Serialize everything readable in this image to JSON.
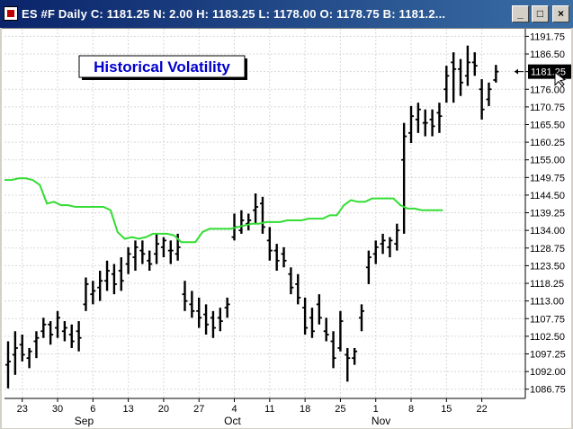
{
  "window": {
    "title": "ES #F Daily C:  1181.25 N:    2.00 H:  1183.25 L:  1178.00 O:  1178.75 B:  1181.2..."
  },
  "legend": {
    "label": "Historical Volatility"
  },
  "chart_data": {
    "type": "bar",
    "title": "",
    "ylim": [
      1084,
      1194
    ],
    "y_ticks": [
      1191.75,
      1186.5,
      1181.25,
      1176.0,
      1170.75,
      1165.5,
      1160.25,
      1155.0,
      1149.75,
      1144.5,
      1139.25,
      1134.0,
      1128.75,
      1123.5,
      1118.25,
      1113.0,
      1107.75,
      1102.5,
      1097.25,
      1092.0,
      1086.75
    ],
    "last_price_label": "1181.25",
    "x_tick_labels": [
      "23",
      "30",
      "6",
      "13",
      "20",
      "27",
      "4",
      "11",
      "18",
      "25",
      "1",
      "8",
      "15",
      "22"
    ],
    "x_tick_index": [
      2,
      7,
      12,
      17,
      22,
      27,
      32,
      37,
      42,
      47,
      52,
      57,
      62,
      67
    ],
    "month_labels": [
      {
        "label": "Sep",
        "index": 11
      },
      {
        "label": "Oct",
        "index": 32
      },
      {
        "label": "Nov",
        "index": 53
      }
    ],
    "series": [
      {
        "name": "Price",
        "style": "ohlc",
        "color": "#000000",
        "ohlc": [
          [
            1094,
            1101,
            1087,
            1095
          ],
          [
            1097,
            1104,
            1091,
            1099
          ],
          [
            1100,
            1103,
            1095,
            1097
          ],
          [
            1096,
            1099,
            1093,
            1098
          ],
          [
            1101,
            1104,
            1096,
            1102
          ],
          [
            1104,
            1108,
            1102,
            1106
          ],
          [
            1106,
            1107,
            1100,
            1103
          ],
          [
            1105,
            1110,
            1102,
            1108
          ],
          [
            1104,
            1107,
            1101,
            1105
          ],
          [
            1103,
            1106,
            1099,
            1101
          ],
          [
            1104,
            1107,
            1098,
            1102
          ],
          [
            1112,
            1120,
            1110,
            1118
          ],
          [
            1115,
            1119,
            1112,
            1116
          ],
          [
            1117,
            1122,
            1113,
            1119
          ],
          [
            1119,
            1125,
            1116,
            1122
          ],
          [
            1121,
            1124,
            1115,
            1118
          ],
          [
            1122,
            1126,
            1116,
            1119
          ],
          [
            1124,
            1129,
            1121,
            1127
          ],
          [
            1126,
            1131,
            1122,
            1129
          ],
          [
            1128,
            1131,
            1124,
            1127
          ],
          [
            1125,
            1128,
            1122,
            1124
          ],
          [
            1127,
            1133,
            1124,
            1130
          ],
          [
            1129,
            1132,
            1126,
            1131
          ],
          [
            1128,
            1131,
            1124,
            1128
          ],
          [
            1127,
            1133,
            1125,
            1129
          ],
          [
            1115,
            1119,
            1110,
            1113
          ],
          [
            1112,
            1116,
            1108,
            1110
          ],
          [
            1110,
            1114,
            1105,
            1108
          ],
          [
            1109,
            1112,
            1103,
            1106
          ],
          [
            1108,
            1110,
            1102,
            1105
          ],
          [
            1108,
            1111,
            1104,
            1107
          ],
          [
            1111,
            1114,
            1108,
            1112
          ],
          [
            1132,
            1139,
            1131,
            1135
          ],
          [
            1134,
            1140,
            1133,
            1137
          ],
          [
            1136,
            1139,
            1134,
            1137
          ],
          [
            1140,
            1145,
            1136,
            1141
          ],
          [
            1142,
            1144,
            1133,
            1135
          ],
          [
            1131,
            1135,
            1125,
            1128
          ],
          [
            1128,
            1130,
            1122,
            1125
          ],
          [
            1127,
            1129,
            1123,
            1125
          ],
          [
            1121,
            1123,
            1115,
            1117
          ],
          [
            1118,
            1121,
            1112,
            1114
          ],
          [
            1111,
            1114,
            1103,
            1105
          ],
          [
            1108,
            1111,
            1102,
            1104
          ],
          [
            1112,
            1115,
            1106,
            1108
          ],
          [
            1104,
            1108,
            1101,
            1103
          ],
          [
            1101,
            1104,
            1093,
            1096
          ],
          [
            1099,
            1110,
            1098,
            1107
          ],
          [
            1097,
            1099,
            1089,
            1096
          ],
          [
            1096,
            1099,
            1094,
            1098
          ],
          [
            1108,
            1112,
            1104,
            1110
          ],
          [
            1123,
            1128,
            1118,
            1126
          ],
          [
            1127,
            1131,
            1124,
            1129
          ],
          [
            1130,
            1133,
            1127,
            1131
          ],
          [
            1129,
            1132,
            1126,
            1131
          ],
          [
            1130,
            1136,
            1128,
            1134
          ],
          [
            1155,
            1166,
            1133,
            1162
          ],
          [
            1163,
            1171,
            1160,
            1168
          ],
          [
            1167,
            1172,
            1163,
            1170
          ],
          [
            1166,
            1170,
            1162,
            1166
          ],
          [
            1167,
            1170,
            1162,
            1165
          ],
          [
            1169,
            1172,
            1163,
            1168
          ],
          [
            1176,
            1183,
            1172,
            1180
          ],
          [
            1184,
            1187,
            1172,
            1182
          ],
          [
            1182,
            1185,
            1174,
            1178
          ],
          [
            1180,
            1189,
            1177,
            1184
          ],
          [
            1184,
            1187,
            1180,
            1183
          ],
          [
            1176,
            1179,
            1167,
            1170
          ],
          [
            1173,
            1178,
            1171,
            1176
          ],
          [
            1178.75,
            1183.25,
            1178,
            1181.25
          ]
        ]
      },
      {
        "name": "Historical Volatility",
        "style": "line",
        "color": "#33dd33",
        "values": [
          1149,
          1149,
          1149.5,
          1149.5,
          1149,
          1147.5,
          1142,
          1142.5,
          1141.5,
          1141.5,
          1141,
          1141,
          1141,
          1141,
          1141,
          1140,
          1133.5,
          1131.5,
          1132,
          1131.5,
          1132,
          1133,
          1133,
          1133,
          1132.5,
          1130.5,
          1130.5,
          1130.5,
          1133.5,
          1134.5,
          1134.5,
          1134.5,
          1134.5,
          1135,
          1135.5,
          1136,
          1136,
          1136.5,
          1136.5,
          1136.5,
          1137,
          1137,
          1137,
          1137.5,
          1137.5,
          1137.5,
          1138.5,
          1138.5,
          1141.5,
          1143,
          1142.5,
          1142.5,
          1143.5,
          1143.5,
          1143.5,
          1143.5,
          1141.5,
          1140.5,
          1140.5,
          1140,
          1140,
          1140,
          1140
        ]
      }
    ]
  }
}
